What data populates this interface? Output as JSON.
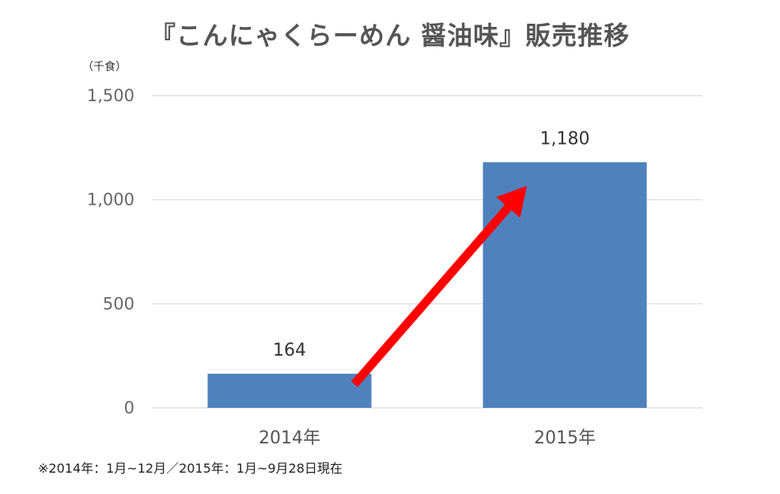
{
  "chart_data": {
    "type": "bar",
    "title": "『こんにゃくらーめん 醤油味』販売推移",
    "unit_label": "（千食）",
    "categories": [
      "2014年",
      "2015年"
    ],
    "values": [
      164,
      1180
    ],
    "value_labels": [
      "164",
      "1,180"
    ],
    "ylim": [
      0,
      1500
    ],
    "yticks": [
      0,
      500,
      1000,
      1500
    ],
    "ytick_labels": [
      "0",
      "500",
      "1,000",
      "1,500"
    ],
    "grid": true,
    "legend": "none",
    "annotations": [
      {
        "type": "arrow",
        "from_category": "2014年",
        "to_category": "2015年",
        "color": "#ff0000"
      }
    ],
    "footnote": "※2014年：1月~12月／2015年：1月~9月28日現在",
    "colors": {
      "bar": "#4f81bd",
      "grid": "#d9d9d9",
      "arrow": "#ff0000"
    }
  }
}
